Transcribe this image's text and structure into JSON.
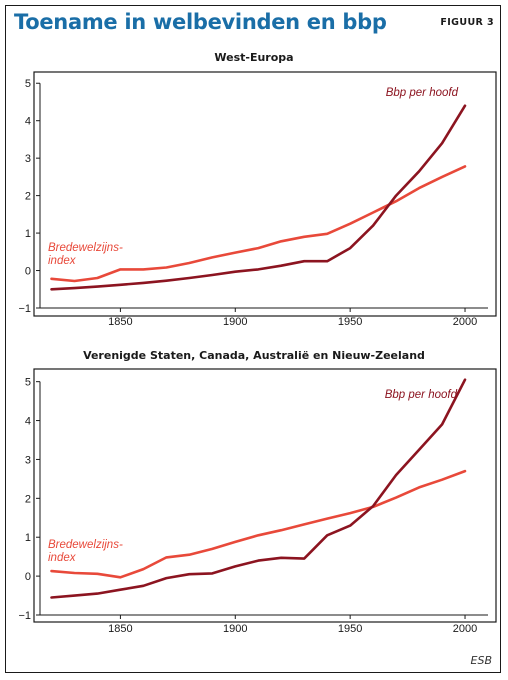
{
  "title": "Toename in welbevinden en bbp",
  "figure_label": "FIGUUR 3",
  "source": "ESB",
  "colors": {
    "bbp": "#8c1420",
    "welzijn": "#e8493a",
    "title": "#1a6ea7"
  },
  "chart_data": [
    {
      "type": "line",
      "title": "West-Europa",
      "xlim": [
        1815,
        2010
      ],
      "ylim": [
        -1,
        5.3
      ],
      "xticks": [
        1850,
        1900,
        1950,
        2000
      ],
      "yticks": [
        -1,
        0,
        1,
        2,
        3,
        4,
        5
      ],
      "grid": false,
      "series": [
        {
          "name": "Bbp per hoofd",
          "color": "#8c1420",
          "points": [
            [
              1820,
              -0.5
            ],
            [
              1830,
              -0.47
            ],
            [
              1840,
              -0.43
            ],
            [
              1850,
              -0.38
            ],
            [
              1860,
              -0.33
            ],
            [
              1870,
              -0.27
            ],
            [
              1880,
              -0.2
            ],
            [
              1890,
              -0.12
            ],
            [
              1900,
              -0.03
            ],
            [
              1910,
              0.03
            ],
            [
              1920,
              0.13
            ],
            [
              1930,
              0.25
            ],
            [
              1940,
              0.25
            ],
            [
              1950,
              0.6
            ],
            [
              1960,
              1.2
            ],
            [
              1970,
              2.0
            ],
            [
              1980,
              2.65
            ],
            [
              1990,
              3.4
            ],
            [
              2000,
              4.4
            ]
          ]
        },
        {
          "name": "Bredewelzijns-index",
          "color": "#e8493a",
          "points": [
            [
              1820,
              -0.22
            ],
            [
              1830,
              -0.28
            ],
            [
              1840,
              -0.2
            ],
            [
              1850,
              0.03
            ],
            [
              1860,
              0.03
            ],
            [
              1870,
              0.08
            ],
            [
              1880,
              0.2
            ],
            [
              1890,
              0.35
            ],
            [
              1900,
              0.48
            ],
            [
              1910,
              0.6
            ],
            [
              1920,
              0.78
            ],
            [
              1930,
              0.9
            ],
            [
              1940,
              0.98
            ],
            [
              1950,
              1.25
            ],
            [
              1960,
              1.55
            ],
            [
              1970,
              1.85
            ],
            [
              1980,
              2.2
            ],
            [
              1990,
              2.5
            ],
            [
              2000,
              2.78
            ]
          ]
        }
      ]
    },
    {
      "type": "line",
      "title": "Verenigde Staten, Canada, Australië en Nieuw-Zeeland",
      "xlim": [
        1815,
        2010
      ],
      "ylim": [
        -1,
        5.3
      ],
      "xticks": [
        1850,
        1900,
        1950,
        2000
      ],
      "yticks": [
        -1,
        0,
        1,
        2,
        3,
        4,
        5
      ],
      "grid": false,
      "series": [
        {
          "name": "Bbp per hoofd",
          "color": "#8c1420",
          "points": [
            [
              1820,
              -0.55
            ],
            [
              1830,
              -0.5
            ],
            [
              1840,
              -0.45
            ],
            [
              1850,
              -0.35
            ],
            [
              1860,
              -0.25
            ],
            [
              1870,
              -0.05
            ],
            [
              1880,
              0.05
            ],
            [
              1890,
              0.07
            ],
            [
              1900,
              0.25
            ],
            [
              1910,
              0.4
            ],
            [
              1920,
              0.47
            ],
            [
              1930,
              0.45
            ],
            [
              1940,
              1.05
            ],
            [
              1950,
              1.3
            ],
            [
              1960,
              1.8
            ],
            [
              1970,
              2.6
            ],
            [
              1980,
              3.25
            ],
            [
              1990,
              3.9
            ],
            [
              2000,
              5.05
            ]
          ]
        },
        {
          "name": "Bredewelzijns-index",
          "color": "#e8493a",
          "points": [
            [
              1820,
              0.13
            ],
            [
              1830,
              0.08
            ],
            [
              1840,
              0.06
            ],
            [
              1850,
              -0.03
            ],
            [
              1860,
              0.18
            ],
            [
              1870,
              0.48
            ],
            [
              1880,
              0.55
            ],
            [
              1890,
              0.7
            ],
            [
              1900,
              0.88
            ],
            [
              1910,
              1.05
            ],
            [
              1920,
              1.18
            ],
            [
              1930,
              1.33
            ],
            [
              1940,
              1.48
            ],
            [
              1950,
              1.62
            ],
            [
              1960,
              1.78
            ],
            [
              1970,
              2.02
            ],
            [
              1980,
              2.28
            ],
            [
              1990,
              2.48
            ],
            [
              2000,
              2.7
            ]
          ]
        }
      ]
    }
  ],
  "labels": {
    "bbp": "Bbp per hoofd",
    "welzijn_line1": "Bredewelzijns-",
    "welzijn_line2": "index"
  }
}
